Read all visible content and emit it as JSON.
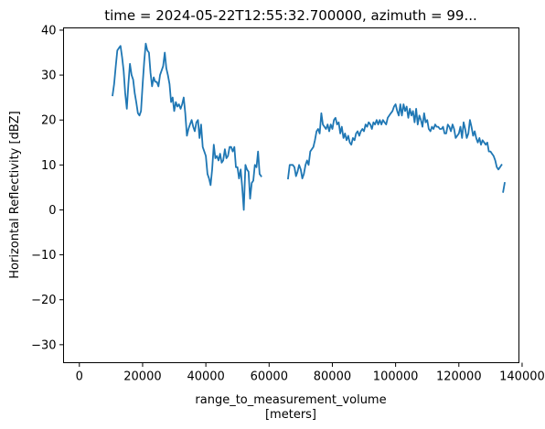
{
  "chart_data": {
    "type": "line",
    "title": "time = 2024-05-22T12:55:32.700000, azimuth = 99...",
    "xlabel": "range_to_measurement_volume",
    "xlabel_unit": "[meters]",
    "ylabel": "Horizontal Reflectivity [dBZ]",
    "xlim": [
      -5000,
      139000
    ],
    "ylim": [
      -34,
      40.5
    ],
    "xticks": [
      0,
      20000,
      40000,
      60000,
      80000,
      100000,
      120000,
      140000
    ],
    "xtick_labels": [
      "0",
      "20000",
      "40000",
      "60000",
      "80000",
      "100000",
      "120000",
      "140000"
    ],
    "yticks": [
      -30,
      -20,
      -10,
      0,
      10,
      20,
      30,
      40
    ],
    "ytick_labels": [
      "−30",
      "−20",
      "−10",
      "0",
      "10",
      "20",
      "30",
      "40"
    ],
    "grid": false,
    "color": "#1f77b4",
    "series": [
      {
        "segments": [
          [
            [
              10500,
              25.5
            ],
            [
              11000,
              28
            ],
            [
              11500,
              32
            ],
            [
              12000,
              35.5
            ],
            [
              12500,
              36
            ],
            [
              13000,
              36.5
            ],
            [
              13500,
              34
            ],
            [
              14000,
              31
            ],
            [
              14500,
              26
            ],
            [
              15000,
              22.5
            ],
            [
              15500,
              28
            ],
            [
              16000,
              32.5
            ],
            [
              16500,
              30
            ],
            [
              17000,
              29
            ],
            [
              17500,
              26
            ],
            [
              18000,
              24
            ],
            [
              18500,
              21.5
            ],
            [
              19000,
              21
            ],
            [
              19500,
              22
            ],
            [
              20000,
              28
            ],
            [
              20500,
              33
            ],
            [
              21000,
              37
            ],
            [
              21500,
              35.5
            ],
            [
              22000,
              35
            ],
            [
              22500,
              30.5
            ],
            [
              23000,
              27.5
            ],
            [
              23500,
              29.5
            ],
            [
              24000,
              28.5
            ],
            [
              24500,
              28.5
            ],
            [
              25000,
              27.5
            ],
            [
              25500,
              30
            ],
            [
              26000,
              31
            ],
            [
              26500,
              32
            ],
            [
              27000,
              35
            ],
            [
              27500,
              31.5
            ],
            [
              28000,
              30
            ],
            [
              28500,
              28
            ],
            [
              29000,
              24
            ],
            [
              29500,
              25
            ],
            [
              30000,
              22
            ],
            [
              30500,
              24
            ],
            [
              31000,
              23
            ],
            [
              31500,
              23.5
            ],
            [
              32000,
              22.5
            ],
            [
              32500,
              23.5
            ],
            [
              33000,
              25
            ],
            [
              33500,
              21.5
            ],
            [
              34000,
              16.5
            ],
            [
              34500,
              18
            ],
            [
              35000,
              19
            ],
            [
              35500,
              20
            ],
            [
              36000,
              18.5
            ],
            [
              36500,
              17.5
            ],
            [
              37000,
              19.5
            ],
            [
              37500,
              20
            ],
            [
              38000,
              16
            ],
            [
              38500,
              19
            ],
            [
              39000,
              14
            ],
            [
              39500,
              13
            ],
            [
              40000,
              12
            ],
            [
              40500,
              8
            ],
            [
              41000,
              7
            ],
            [
              41500,
              5.5
            ],
            [
              42000,
              9
            ],
            [
              42500,
              14.5
            ],
            [
              43000,
              11.5
            ],
            [
              43500,
              12
            ],
            [
              44000,
              11
            ],
            [
              44500,
              12.5
            ],
            [
              45000,
              10.5
            ],
            [
              45500,
              11
            ],
            [
              46000,
              13.5
            ],
            [
              46500,
              11.5
            ],
            [
              47000,
              12
            ],
            [
              47500,
              14
            ],
            [
              48000,
              14
            ],
            [
              48500,
              13
            ],
            [
              49000,
              14
            ],
            [
              49500,
              9.5
            ],
            [
              50000,
              9.5
            ],
            [
              50500,
              7
            ],
            [
              51000,
              9
            ],
            [
              51500,
              5
            ],
            [
              52000,
              0
            ],
            [
              52500,
              10
            ],
            [
              53000,
              9
            ],
            [
              53500,
              8.5
            ],
            [
              54000,
              2.5
            ],
            [
              54500,
              6
            ],
            [
              55000,
              6.5
            ],
            [
              55500,
              10
            ],
            [
              56000,
              9.5
            ],
            [
              56500,
              13
            ],
            [
              57000,
              8
            ],
            [
              57500,
              7.5
            ]
          ],
          [
            [
              66000,
              7
            ],
            [
              66500,
              10
            ],
            [
              67000,
              10
            ],
            [
              67500,
              10
            ],
            [
              68000,
              9.5
            ],
            [
              68500,
              7.5
            ],
            [
              69000,
              8.5
            ],
            [
              69500,
              10
            ],
            [
              70000,
              9
            ],
            [
              70500,
              7
            ],
            [
              71000,
              8
            ],
            [
              71500,
              10
            ],
            [
              72000,
              11
            ],
            [
              72500,
              10
            ],
            [
              73000,
              13
            ],
            [
              73500,
              13.5
            ],
            [
              74000,
              14
            ],
            [
              74500,
              15.5
            ],
            [
              75000,
              17.5
            ],
            [
              75500,
              18
            ],
            [
              76000,
              17
            ],
            [
              76500,
              21.5
            ],
            [
              77000,
              19
            ],
            [
              77500,
              18.5
            ],
            [
              78000,
              18
            ],
            [
              78500,
              19
            ],
            [
              79000,
              17.5
            ],
            [
              79500,
              19
            ],
            [
              80000,
              18
            ],
            [
              80500,
              20
            ],
            [
              81000,
              20.5
            ],
            [
              81500,
              19
            ],
            [
              82000,
              19.5
            ],
            [
              82500,
              17
            ],
            [
              83000,
              18.5
            ],
            [
              83500,
              16
            ],
            [
              84000,
              17
            ],
            [
              84500,
              15.5
            ],
            [
              85000,
              16.5
            ],
            [
              85500,
              15
            ],
            [
              86000,
              14.5
            ],
            [
              86500,
              16
            ],
            [
              87000,
              15.5
            ],
            [
              87500,
              17
            ],
            [
              88000,
              17.5
            ],
            [
              88500,
              16.5
            ],
            [
              89000,
              17.5
            ],
            [
              89500,
              18
            ],
            [
              90000,
              17.5
            ],
            [
              90500,
              19
            ],
            [
              91000,
              18.5
            ],
            [
              91500,
              19.5
            ],
            [
              92000,
              19
            ],
            [
              92500,
              18
            ],
            [
              93000,
              19.5
            ],
            [
              93500,
              19
            ],
            [
              94000,
              20
            ],
            [
              94500,
              19
            ],
            [
              95000,
              20
            ],
            [
              95500,
              19
            ],
            [
              96000,
              20
            ],
            [
              96500,
              19.5
            ],
            [
              97000,
              19
            ],
            [
              97500,
              20.5
            ],
            [
              98000,
              21
            ],
            [
              98500,
              21.5
            ],
            [
              99000,
              22
            ],
            [
              99500,
              23
            ],
            [
              100000,
              23.5
            ],
            [
              100500,
              22
            ],
            [
              101000,
              21
            ],
            [
              101500,
              23.5
            ],
            [
              102000,
              21
            ],
            [
              102500,
              23.5
            ],
            [
              103000,
              22
            ],
            [
              103500,
              23
            ],
            [
              104000,
              20.5
            ],
            [
              104500,
              22.5
            ],
            [
              105000,
              21
            ],
            [
              105500,
              22
            ],
            [
              106000,
              19.5
            ],
            [
              106500,
              22.5
            ],
            [
              107000,
              19
            ],
            [
              107500,
              21
            ],
            [
              108000,
              20
            ],
            [
              108500,
              18.5
            ],
            [
              109000,
              21.5
            ],
            [
              109500,
              19.5
            ],
            [
              110000,
              20
            ],
            [
              110500,
              18
            ],
            [
              111000,
              17.5
            ],
            [
              111500,
              18.5
            ],
            [
              112000,
              18
            ],
            [
              112500,
              19
            ],
            [
              113000,
              18.5
            ],
            [
              113500,
              18.5
            ],
            [
              114000,
              18
            ],
            [
              114500,
              18
            ],
            [
              115000,
              18.5
            ],
            [
              115500,
              17
            ],
            [
              116000,
              17
            ],
            [
              116500,
              19
            ],
            [
              117000,
              18.5
            ],
            [
              117500,
              17.5
            ],
            [
              118000,
              19
            ],
            [
              118500,
              18
            ],
            [
              119000,
              16
            ],
            [
              119500,
              16.5
            ],
            [
              120000,
              17
            ],
            [
              120500,
              18.5
            ],
            [
              121000,
              16
            ],
            [
              121500,
              19.5
            ],
            [
              122000,
              18
            ],
            [
              122500,
              16
            ],
            [
              123000,
              17
            ],
            [
              123500,
              20
            ],
            [
              124000,
              18.5
            ],
            [
              124500,
              16.5
            ],
            [
              125000,
              17.5
            ],
            [
              125500,
              16
            ],
            [
              126000,
              15
            ],
            [
              126500,
              16
            ],
            [
              127000,
              14.5
            ],
            [
              127500,
              15.5
            ],
            [
              128000,
              15
            ],
            [
              128500,
              14.5
            ],
            [
              129000,
              15
            ],
            [
              129500,
              13
            ],
            [
              130000,
              13
            ],
            [
              130500,
              12.5
            ],
            [
              131000,
              12
            ],
            [
              131500,
              11
            ],
            [
              132000,
              9.5
            ],
            [
              132500,
              9
            ],
            [
              133000,
              9.5
            ],
            [
              133500,
              10
            ]
          ],
          [
            [
              134000,
              4
            ],
            [
              134500,
              6
            ]
          ]
        ]
      }
    ]
  }
}
